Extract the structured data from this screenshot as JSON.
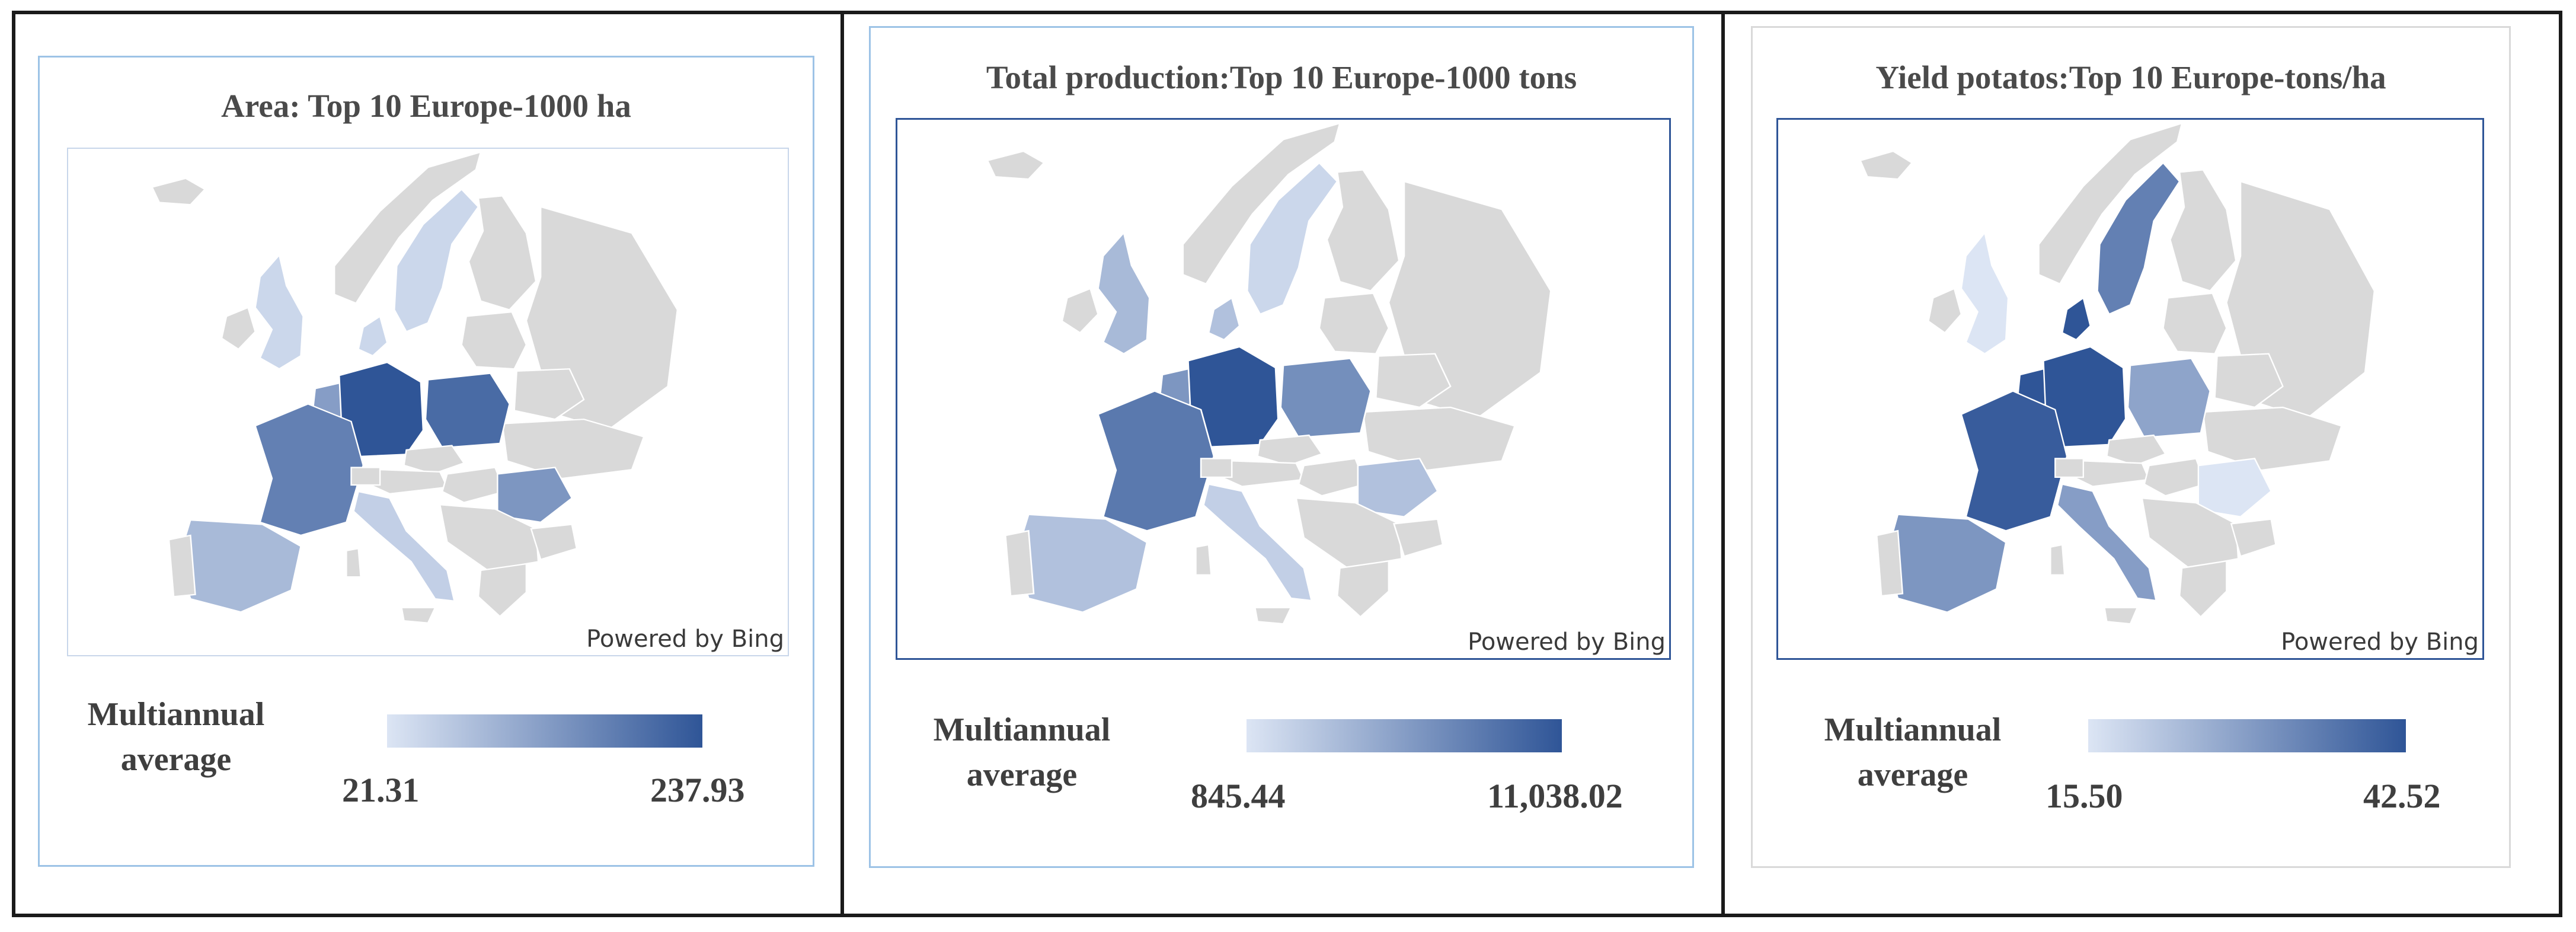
{
  "colors": {
    "low": "#dce5f4",
    "high": "#2f5597",
    "no_data": "#d9d9d9",
    "border_blue": "#9dc3e6",
    "border_dark": "#1a1a1a"
  },
  "panels": [
    {
      "title": "Area: Top 10 Europe-1000 ha",
      "legend_label_line1": "Multiannual",
      "legend_label_line2": "average",
      "legend_min": "21.31",
      "legend_max": "237.93",
      "credit": "Powered by Bing",
      "shaded": {
        "germany": 1.0,
        "poland": 0.85,
        "france": 0.7,
        "romania": 0.55,
        "benelux": 0.5,
        "spain": 0.3,
        "italy": 0.15,
        "uk": 0.1,
        "denmark": 0.1,
        "sweden": 0.1
      }
    },
    {
      "title": "Total production:Top 10 Europe-1000 tons",
      "legend_label_line1": "Multiannual",
      "legend_label_line2": "average",
      "legend_min": "845.44",
      "legend_max": "11,038.02",
      "credit": "Powered by Bing",
      "shaded": {
        "germany": 1.0,
        "france": 0.75,
        "poland": 0.6,
        "benelux": 0.55,
        "romania": 0.25,
        "spain": 0.25,
        "italy": 0.15,
        "uk": 0.3,
        "denmark": 0.25,
        "sweden": 0.1
      }
    },
    {
      "title": "Yield potatos:Top 10 Europe-tons/ha",
      "legend_label_line1": "Multiannual",
      "legend_label_line2": "average",
      "legend_min": "15.50",
      "legend_max": "42.52",
      "credit": "Powered by Bing",
      "shaded": {
        "germany": 1.0,
        "france": 0.95,
        "benelux": 1.0,
        "denmark": 1.0,
        "sweden": 0.7,
        "spain": 0.55,
        "italy": 0.5,
        "poland": 0.45,
        "uk": 0.0,
        "romania": 0.0
      }
    }
  ]
}
